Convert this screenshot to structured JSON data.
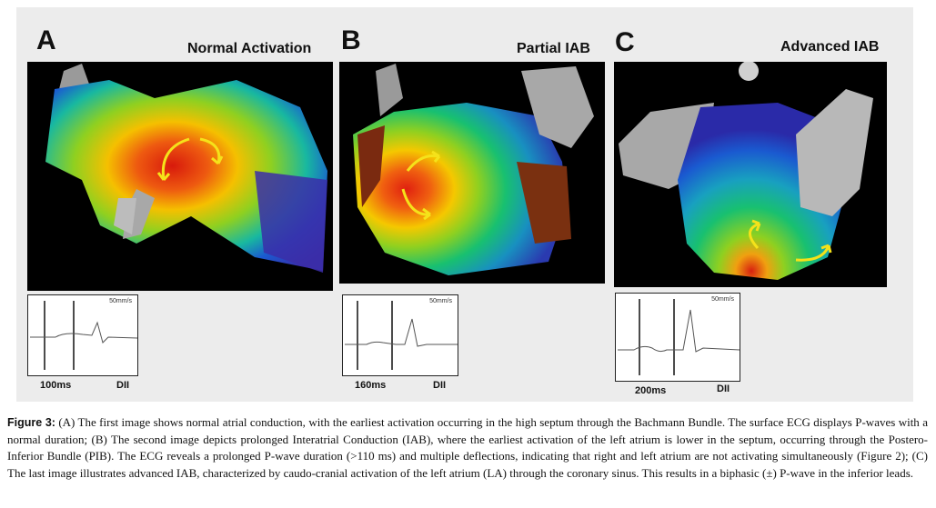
{
  "panels": [
    {
      "letter": "A",
      "title": "Normal Activation",
      "ecg_speed": "50mm/s",
      "ecg_duration": "100ms",
      "ecg_lead": "DII"
    },
    {
      "letter": "B",
      "title": "Partial IAB",
      "ecg_speed": "50mm/s",
      "ecg_duration": "160ms",
      "ecg_lead": "DII"
    },
    {
      "letter": "C",
      "title": "Advanced IAB",
      "ecg_speed": "50mm/s",
      "ecg_duration": "200ms",
      "ecg_lead": "DII"
    }
  ],
  "caption": {
    "label": "Figure 3:",
    "text": " (A) The first image shows normal atrial conduction, with the earliest activation occurring in the high septum through the Bachmann Bundle. The surface ECG displays P-waves with a normal duration; (B) The second image depicts prolonged Interatrial Conduction (IAB), where the earliest activation of the left atrium is lower in the septum, occurring through the Postero-Inferior Bundle (PIB). The ECG reveals a prolonged P-wave duration (>110 ms) and multiple deflections, indicating that right and left atrium are not activating simultaneously (Figure 2); (C) The last image illustrates advanced IAB, characterized by caudo-cranial activation of the left atrium (LA) through the coronary sinus. This results in a biphasic (±) P-wave in the inferior leads."
  },
  "colors": {
    "early_activation": "#e02010",
    "late_activation": "#3a2aa8",
    "arrow": "#f5e21a",
    "scar": "#7a2a10"
  }
}
